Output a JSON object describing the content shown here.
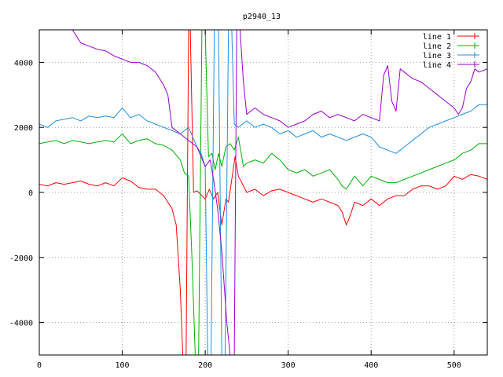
{
  "chart_data": {
    "type": "line",
    "title": "p2940_13",
    "xlabel": "",
    "ylabel": "",
    "xlim": [
      0,
      540
    ],
    "ylim": [
      -5000,
      5000
    ],
    "xticks": [
      0,
      100,
      200,
      300,
      400,
      500
    ],
    "yticks": [
      -4000,
      -2000,
      0,
      2000,
      4000
    ],
    "grid": true,
    "legend_position": "top-right",
    "series": [
      {
        "name": "line 1",
        "color": "#ff0000",
        "points": [
          [
            0,
            250
          ],
          [
            10,
            200
          ],
          [
            20,
            300
          ],
          [
            30,
            250
          ],
          [
            40,
            300
          ],
          [
            50,
            350
          ],
          [
            60,
            250
          ],
          [
            70,
            200
          ],
          [
            80,
            300
          ],
          [
            90,
            200
          ],
          [
            100,
            450
          ],
          [
            110,
            350
          ],
          [
            120,
            150
          ],
          [
            130,
            100
          ],
          [
            140,
            100
          ],
          [
            150,
            -100
          ],
          [
            160,
            -500
          ],
          [
            165,
            -1000
          ],
          [
            170,
            -3000
          ],
          [
            173,
            -5000
          ],
          [
            177,
            -5000
          ],
          [
            180,
            5000
          ],
          [
            182,
            5000
          ],
          [
            186,
            0
          ],
          [
            190,
            50
          ],
          [
            196,
            -100
          ],
          [
            200,
            -200
          ],
          [
            205,
            100
          ],
          [
            210,
            -200
          ],
          [
            215,
            0
          ],
          [
            220,
            -1000
          ],
          [
            225,
            -200
          ],
          [
            228,
            -300
          ],
          [
            232,
            400
          ],
          [
            236,
            1100
          ],
          [
            240,
            500
          ],
          [
            246,
            200
          ],
          [
            250,
            0
          ],
          [
            260,
            100
          ],
          [
            270,
            -100
          ],
          [
            280,
            50
          ],
          [
            290,
            100
          ],
          [
            300,
            0
          ],
          [
            310,
            -100
          ],
          [
            320,
            -200
          ],
          [
            330,
            -300
          ],
          [
            340,
            -200
          ],
          [
            350,
            -300
          ],
          [
            360,
            -400
          ],
          [
            365,
            -600
          ],
          [
            370,
            -1000
          ],
          [
            375,
            -700
          ],
          [
            380,
            -300
          ],
          [
            390,
            -400
          ],
          [
            400,
            -200
          ],
          [
            410,
            -400
          ],
          [
            420,
            -200
          ],
          [
            430,
            -100
          ],
          [
            440,
            -100
          ],
          [
            450,
            100
          ],
          [
            460,
            200
          ],
          [
            470,
            200
          ],
          [
            480,
            100
          ],
          [
            490,
            200
          ],
          [
            500,
            500
          ],
          [
            510,
            400
          ],
          [
            520,
            550
          ],
          [
            530,
            500
          ],
          [
            540,
            400
          ]
        ]
      },
      {
        "name": "line 2",
        "color": "#00b000",
        "points": [
          [
            0,
            1500
          ],
          [
            10,
            1550
          ],
          [
            20,
            1600
          ],
          [
            30,
            1500
          ],
          [
            40,
            1600
          ],
          [
            50,
            1550
          ],
          [
            60,
            1500
          ],
          [
            70,
            1550
          ],
          [
            80,
            1600
          ],
          [
            90,
            1550
          ],
          [
            100,
            1800
          ],
          [
            110,
            1500
          ],
          [
            120,
            1600
          ],
          [
            130,
            1650
          ],
          [
            140,
            1500
          ],
          [
            150,
            1450
          ],
          [
            160,
            1300
          ],
          [
            170,
            1000
          ],
          [
            175,
            600
          ],
          [
            180,
            500
          ],
          [
            184,
            -2000
          ],
          [
            188,
            -5000
          ],
          [
            192,
            -5000
          ],
          [
            196,
            5000
          ],
          [
            200,
            5000
          ],
          [
            204,
            1100
          ],
          [
            208,
            1200
          ],
          [
            212,
            700
          ],
          [
            216,
            1200
          ],
          [
            220,
            800
          ],
          [
            225,
            1400
          ],
          [
            230,
            1500
          ],
          [
            235,
            1300
          ],
          [
            240,
            1700
          ],
          [
            246,
            800
          ],
          [
            250,
            900
          ],
          [
            260,
            1000
          ],
          [
            270,
            900
          ],
          [
            280,
            1200
          ],
          [
            290,
            1000
          ],
          [
            300,
            700
          ],
          [
            310,
            600
          ],
          [
            320,
            700
          ],
          [
            330,
            500
          ],
          [
            340,
            600
          ],
          [
            350,
            700
          ],
          [
            360,
            400
          ],
          [
            365,
            200
          ],
          [
            370,
            100
          ],
          [
            375,
            300
          ],
          [
            380,
            500
          ],
          [
            390,
            200
          ],
          [
            400,
            500
          ],
          [
            410,
            400
          ],
          [
            420,
            300
          ],
          [
            430,
            300
          ],
          [
            440,
            400
          ],
          [
            450,
            500
          ],
          [
            460,
            600
          ],
          [
            470,
            700
          ],
          [
            480,
            800
          ],
          [
            490,
            900
          ],
          [
            500,
            1000
          ],
          [
            510,
            1200
          ],
          [
            520,
            1300
          ],
          [
            530,
            1500
          ],
          [
            540,
            1500
          ]
        ]
      },
      {
        "name": "line 3",
        "color": "#1f8fe0",
        "points": [
          [
            0,
            2100
          ],
          [
            10,
            2000
          ],
          [
            20,
            2200
          ],
          [
            30,
            2250
          ],
          [
            40,
            2300
          ],
          [
            50,
            2200
          ],
          [
            60,
            2350
          ],
          [
            70,
            2300
          ],
          [
            80,
            2350
          ],
          [
            90,
            2300
          ],
          [
            100,
            2600
          ],
          [
            110,
            2300
          ],
          [
            120,
            2400
          ],
          [
            130,
            2200
          ],
          [
            140,
            2100
          ],
          [
            150,
            2000
          ],
          [
            160,
            1900
          ],
          [
            170,
            1800
          ],
          [
            180,
            2000
          ],
          [
            185,
            1700
          ],
          [
            190,
            1400
          ],
          [
            195,
            1200
          ],
          [
            200,
            800
          ],
          [
            203,
            -5000
          ],
          [
            207,
            -5000
          ],
          [
            211,
            5000
          ],
          [
            216,
            5000
          ],
          [
            220,
            -5000
          ],
          [
            224,
            -5000
          ],
          [
            228,
            5000
          ],
          [
            232,
            5000
          ],
          [
            235,
            2100
          ],
          [
            240,
            2000
          ],
          [
            250,
            2200
          ],
          [
            260,
            2000
          ],
          [
            270,
            2100
          ],
          [
            280,
            2000
          ],
          [
            290,
            1800
          ],
          [
            300,
            1900
          ],
          [
            310,
            1700
          ],
          [
            320,
            1800
          ],
          [
            330,
            1900
          ],
          [
            340,
            1700
          ],
          [
            350,
            1800
          ],
          [
            360,
            1700
          ],
          [
            370,
            1600
          ],
          [
            380,
            1700
          ],
          [
            390,
            1800
          ],
          [
            400,
            1700
          ],
          [
            410,
            1400
          ],
          [
            420,
            1300
          ],
          [
            430,
            1200
          ],
          [
            440,
            1400
          ],
          [
            450,
            1600
          ],
          [
            460,
            1800
          ],
          [
            470,
            2000
          ],
          [
            480,
            2100
          ],
          [
            490,
            2200
          ],
          [
            500,
            2300
          ],
          [
            510,
            2400
          ],
          [
            520,
            2500
          ],
          [
            530,
            2700
          ],
          [
            540,
            2700
          ]
        ]
      },
      {
        "name": "line 4",
        "color": "#9900cc",
        "points": [
          [
            40,
            5000
          ],
          [
            50,
            4600
          ],
          [
            60,
            4500
          ],
          [
            70,
            4400
          ],
          [
            80,
            4350
          ],
          [
            90,
            4200
          ],
          [
            100,
            4100
          ],
          [
            110,
            4000
          ],
          [
            120,
            4000
          ],
          [
            130,
            3900
          ],
          [
            140,
            3700
          ],
          [
            150,
            3300
          ],
          [
            155,
            3000
          ],
          [
            160,
            2000
          ],
          [
            170,
            1800
          ],
          [
            180,
            1600
          ],
          [
            190,
            1400
          ],
          [
            200,
            800
          ],
          [
            206,
            1000
          ],
          [
            210,
            400
          ],
          [
            215,
            -500
          ],
          [
            220,
            -1800
          ],
          [
            226,
            -4000
          ],
          [
            230,
            -5000
          ],
          [
            235,
            -5000
          ],
          [
            238,
            5000
          ],
          [
            242,
            5000
          ],
          [
            246,
            3400
          ],
          [
            250,
            2400
          ],
          [
            260,
            2600
          ],
          [
            270,
            2400
          ],
          [
            280,
            2300
          ],
          [
            290,
            2200
          ],
          [
            300,
            2000
          ],
          [
            310,
            2100
          ],
          [
            320,
            2200
          ],
          [
            330,
            2400
          ],
          [
            340,
            2500
          ],
          [
            350,
            2300
          ],
          [
            360,
            2400
          ],
          [
            370,
            2300
          ],
          [
            380,
            2200
          ],
          [
            390,
            2400
          ],
          [
            400,
            2300
          ],
          [
            410,
            2200
          ],
          [
            415,
            3600
          ],
          [
            420,
            3900
          ],
          [
            425,
            2800
          ],
          [
            430,
            2500
          ],
          [
            435,
            3800
          ],
          [
            440,
            3700
          ],
          [
            450,
            3500
          ],
          [
            460,
            3400
          ],
          [
            470,
            3200
          ],
          [
            480,
            3000
          ],
          [
            490,
            2800
          ],
          [
            500,
            2600
          ],
          [
            505,
            2400
          ],
          [
            510,
            2600
          ],
          [
            515,
            3200
          ],
          [
            520,
            3400
          ],
          [
            525,
            3800
          ],
          [
            530,
            3700
          ],
          [
            540,
            3800
          ]
        ]
      }
    ]
  }
}
